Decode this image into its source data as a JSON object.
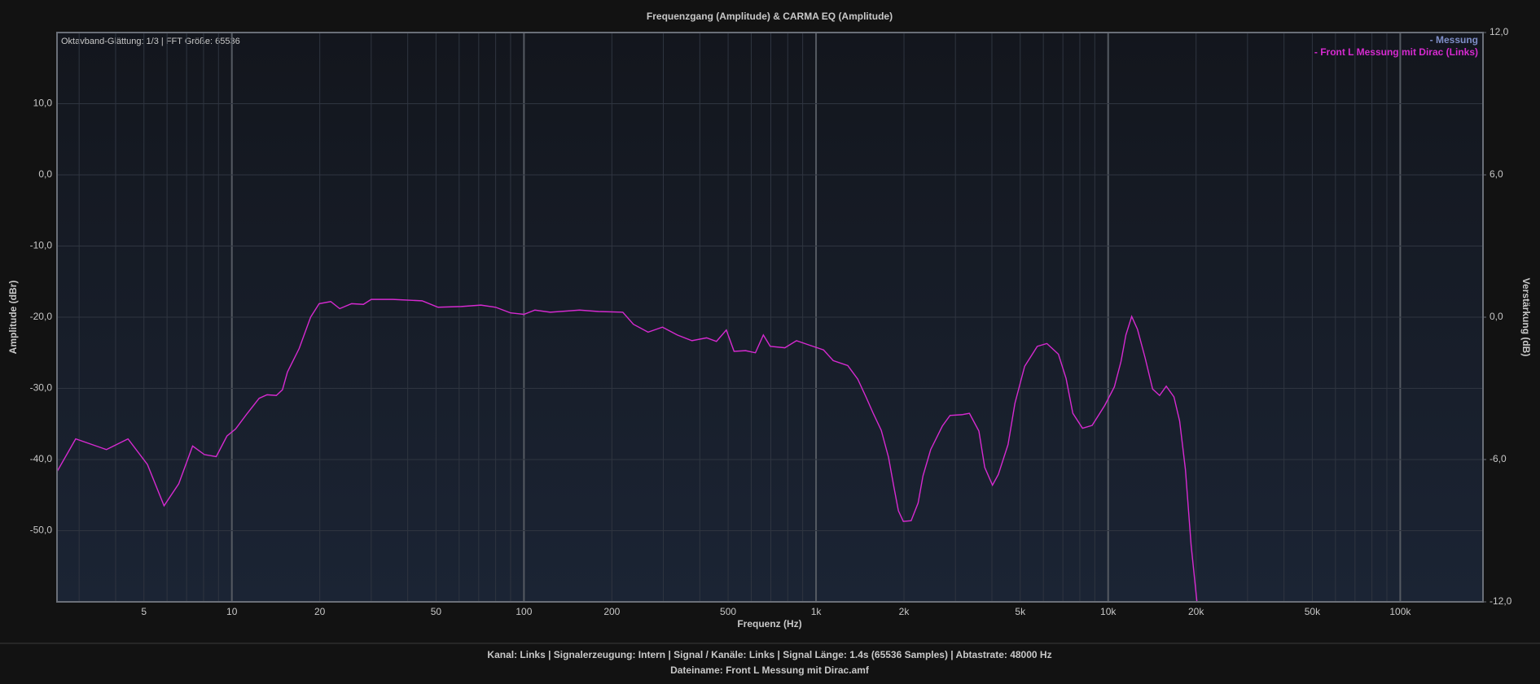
{
  "chart_data": {
    "type": "line",
    "title": "Frequenzgang (Amplitude) & CARMA EQ (Amplitude)",
    "annotation": "Oktavband-Glättung: 1/3 | FFT Größe: 65536",
    "legend_title": "- Messung",
    "legend_title_color": "#7f8fc8",
    "xlabel": "Frequenz (Hz)",
    "ylabel": "Amplitude (dBr)",
    "y2label": "Verstärkung (dB)",
    "xscale": "log",
    "grid": true,
    "legend_position": "upper right",
    "xlim": [
      2.52,
      192000
    ],
    "ylim": [
      -60,
      20
    ],
    "y2lim": [
      -12,
      12
    ],
    "xticks": [
      5,
      10,
      20,
      50,
      100,
      200,
      500,
      {
        "value": 1000,
        "label": "1k"
      },
      {
        "value": 2000,
        "label": "2k"
      },
      {
        "value": 5000,
        "label": "5k"
      },
      {
        "value": 10000,
        "label": "10k"
      },
      {
        "value": 20000,
        "label": "20k"
      },
      {
        "value": 50000,
        "label": "50k"
      },
      {
        "value": 100000,
        "label": "100k"
      }
    ],
    "x_minor_grid": [
      3,
      4,
      6,
      7,
      8,
      9,
      30,
      40,
      60,
      70,
      80,
      90,
      300,
      400,
      600,
      700,
      800,
      900,
      3000,
      4000,
      6000,
      7000,
      8000,
      9000,
      30000,
      40000,
      60000,
      70000,
      80000,
      90000
    ],
    "yticks": [
      {
        "value": -50,
        "label": "-50,0"
      },
      {
        "value": -40,
        "label": "-40,0"
      },
      {
        "value": -30,
        "label": "-30,0"
      },
      {
        "value": -20,
        "label": "-20,0"
      },
      {
        "value": -10,
        "label": "-10,0"
      },
      {
        "value": 0,
        "label": "0,0"
      },
      {
        "value": 10,
        "label": "10,0"
      }
    ],
    "y2ticks": [
      {
        "value": -12,
        "label": "-12,0"
      },
      {
        "value": -6,
        "label": "-6,0"
      },
      {
        "value": 0,
        "label": "0,0"
      },
      {
        "value": 6,
        "label": "6,0"
      },
      {
        "value": 12,
        "label": "12,0"
      }
    ],
    "x": [
      2.52,
      2.92,
      3.72,
      4.41,
      5.14,
      5.86,
      6.58,
      7.34,
      8.05,
      8.84,
      9.62,
      10.3,
      11.3,
      12.4,
      13.2,
      14.2,
      14.9,
      15.5,
      17.0,
      18.6,
      19.9,
      21.8,
      23.4,
      25.7,
      28.2,
      30.0,
      35.6,
      44.8,
      50.8,
      61.0,
      71.2,
      80.0,
      90.0,
      100,
      109,
      123,
      155,
      180,
      218,
      237,
      266,
      298,
      335,
      376,
      422,
      456,
      493,
      524,
      574,
      620,
      660,
      697,
      782,
      857,
      945,
      1061,
      1145,
      1284,
      1389,
      1486,
      1569,
      1672,
      1771,
      1844,
      1914,
      1990,
      2116,
      2236,
      2323,
      2469,
      2706,
      2876,
      3152,
      3350,
      3610,
      3780,
      4018,
      4208,
      4543,
      4796,
      5178,
      5720,
      6170,
      6757,
      7177,
      7570,
      8170,
      8817,
      9735,
      10500,
      11070,
      11500,
      12040,
      12600,
      13380,
      14200,
      15000,
      15810,
      16800,
      17570,
      18390,
      19240,
      20140
    ],
    "series": [
      {
        "name": "- Front L Messung mit Dirac (Links)",
        "color": "#d62ad0",
        "values": [
          -41.7,
          -37.1,
          -38.6,
          -37.1,
          -40.7,
          -46.5,
          -43.4,
          -38.1,
          -39.3,
          -39.6,
          -36.7,
          -35.7,
          -33.5,
          -31.4,
          -30.9,
          -31.0,
          -30.2,
          -27.7,
          -24.4,
          -20.0,
          -18.1,
          -17.8,
          -18.8,
          -18.1,
          -18.2,
          -17.5,
          -17.5,
          -17.7,
          -18.6,
          -18.5,
          -18.3,
          -18.6,
          -19.4,
          -19.6,
          -19.0,
          -19.3,
          -19.0,
          -19.2,
          -19.3,
          -21.0,
          -22.1,
          -21.4,
          -22.5,
          -23.3,
          -22.9,
          -23.4,
          -21.8,
          -24.8,
          -24.7,
          -25.0,
          -22.5,
          -24.1,
          -24.3,
          -23.3,
          -23.9,
          -24.6,
          -26.1,
          -26.8,
          -28.7,
          -31.3,
          -33.5,
          -35.9,
          -39.7,
          -43.7,
          -47.2,
          -48.7,
          -48.6,
          -46.1,
          -42.3,
          -38.6,
          -35.3,
          -33.8,
          -33.7,
          -33.5,
          -36.0,
          -41.1,
          -43.6,
          -42.1,
          -37.9,
          -32.1,
          -26.9,
          -24.1,
          -23.7,
          -25.2,
          -28.6,
          -33.5,
          -35.6,
          -35.2,
          -32.4,
          -29.8,
          -26.2,
          -22.5,
          -19.9,
          -21.7,
          -25.7,
          -30.1,
          -31.0,
          -29.7,
          -31.2,
          -34.6,
          -41.4,
          -52.1,
          -60
        ]
      }
    ]
  },
  "footer": {
    "line1": "Kanal: Links  |  Signalerzeugung: Intern  |  Signal / Kanäle: Links  |  Signal Länge: 1.4s (65536 Samples)  |  Abtastrate: 48000 Hz",
    "line2": "Dateiname: Front L Messung mit Dirac.amf"
  }
}
